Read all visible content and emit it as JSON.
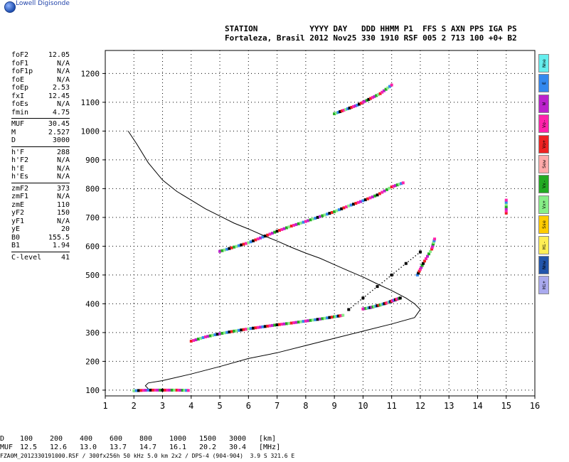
{
  "logo_text": "Lowell Digisonde",
  "header": {
    "line1": "STATION           YYYY DAY   DDD HHMM P1  FFS S AXN PPS IGA PS",
    "line2": "Fortaleza, Brasil 2012 Nov25 330 1910 RSF 005 2 713 100 +0+ B2"
  },
  "params": [
    [
      "foF2",
      "12.05"
    ],
    [
      "foF1",
      "N/A"
    ],
    [
      "foF1p",
      "N/A"
    ],
    [
      "foE",
      "N/A"
    ],
    [
      "foEp",
      "2.53"
    ],
    [
      "fxI",
      "12.45"
    ],
    [
      "foEs",
      "N/A"
    ],
    [
      "fmin",
      "4.75"
    ],
    [
      "---",
      ""
    ],
    [
      "MUF",
      "30.45"
    ],
    [
      "M",
      "2.527"
    ],
    [
      "D",
      "3000"
    ],
    [
      "---",
      ""
    ],
    [
      "h'F",
      "288"
    ],
    [
      "h'F2",
      "N/A"
    ],
    [
      "h'E",
      "N/A"
    ],
    [
      "h'Es",
      "N/A"
    ],
    [
      "---",
      ""
    ],
    [
      "zmF2",
      "373"
    ],
    [
      "zmF1",
      "N/A"
    ],
    [
      "zmE",
      "110"
    ],
    [
      "yF2",
      "150"
    ],
    [
      "yF1",
      "N/A"
    ],
    [
      "yE",
      "20"
    ],
    [
      "B0",
      "155.5"
    ],
    [
      "B1",
      "1.94"
    ],
    [
      "---",
      ""
    ],
    [
      "C-level",
      "41"
    ]
  ],
  "legend": [
    {
      "label": "Nne",
      "color": "#66eeee"
    },
    {
      "label": "E",
      "color": "#3388ee"
    },
    {
      "label": "W",
      "color": "#bb22cc"
    },
    {
      "label": "Vo-",
      "color": "#ff22aa"
    },
    {
      "label": "Vo+",
      "color": "#ee2222"
    },
    {
      "label": "Sew",
      "color": "#ffaaaa"
    },
    {
      "label": "Vx-",
      "color": "#22aa22"
    },
    {
      "label": "Vx+",
      "color": "#88ee88"
    },
    {
      "label": "Sse",
      "color": "#ffcc00"
    },
    {
      "label": "Hi-",
      "color": "#ffee55"
    },
    {
      "label": "Nnw",
      "color": "#2255aa"
    },
    {
      "label": "Hi+",
      "color": "#aaaaee"
    }
  ],
  "muf_table": {
    "d_label": "D",
    "d_values": [
      "100",
      "200",
      "400",
      "600",
      "800",
      "1000",
      "1500",
      "3000",
      "[km]"
    ],
    "muf_label": "MUF",
    "muf_values": [
      "12.5",
      "12.6",
      "13.0",
      "13.7",
      "14.7",
      "16.1",
      "20.2",
      "30.4",
      "[MHz]"
    ]
  },
  "footer": "FZA0M_2012330191000.RSF / 300fx256h 50 kHz 5.0 km 2x2 / DPS-4 (904-904)  3.9 S 321.6 E",
  "chart_data": {
    "type": "scatter",
    "xlim": [
      1,
      16
    ],
    "ylim": [
      80,
      1280
    ],
    "xticks": [
      1,
      2,
      3,
      4,
      5,
      6,
      7,
      8,
      9,
      10,
      11,
      12,
      13,
      14,
      15,
      16
    ],
    "yticks": [
      100,
      200,
      300,
      400,
      500,
      600,
      700,
      800,
      900,
      1000,
      1100,
      1200
    ],
    "grid": true,
    "profile": {
      "x": [
        1.8,
        2.1,
        2.5,
        3.0,
        3.5,
        4.0,
        4.5,
        5.0,
        5.5,
        6.0,
        6.5,
        7.0,
        7.5,
        8.0,
        8.5,
        9.0,
        9.5,
        10.0,
        10.5,
        11.0,
        11.5,
        11.8,
        12.0,
        11.8,
        11.0,
        10.0,
        9.0,
        8.0,
        7.0,
        6.0,
        5.0,
        4.0,
        3.0,
        2.5,
        2.4,
        2.5
      ],
      "y": [
        1000,
        955,
        890,
        830,
        790,
        760,
        730,
        705,
        680,
        660,
        638,
        618,
        596,
        576,
        558,
        536,
        514,
        493,
        469,
        446,
        420,
        400,
        380,
        352,
        330,
        305,
        280,
        255,
        230,
        210,
        182,
        156,
        133,
        125,
        115,
        105
      ]
    },
    "traces": [
      {
        "name": "o-trace",
        "points": [
          [
            4.0,
            270
          ],
          [
            4.5,
            285
          ],
          [
            5.0,
            296
          ],
          [
            5.5,
            305
          ],
          [
            6.0,
            313
          ],
          [
            6.5,
            320
          ],
          [
            7.0,
            327
          ],
          [
            7.5,
            333
          ],
          [
            8.0,
            340
          ],
          [
            8.5,
            347
          ],
          [
            9.0,
            355
          ],
          [
            9.3,
            360
          ]
        ]
      },
      {
        "name": "x-trace",
        "points": [
          [
            10.0,
            382
          ],
          [
            10.3,
            388
          ],
          [
            10.6,
            396
          ],
          [
            10.9,
            405
          ],
          [
            11.1,
            413
          ],
          [
            11.3,
            420
          ]
        ]
      },
      {
        "name": "2F-lower",
        "points": [
          [
            5.0,
            582
          ],
          [
            5.5,
            597
          ],
          [
            6.0,
            612
          ],
          [
            6.5,
            632
          ],
          [
            7.0,
            652
          ],
          [
            7.5,
            670
          ],
          [
            8.0,
            686
          ],
          [
            8.5,
            703
          ],
          [
            9.0,
            720
          ],
          [
            9.5,
            740
          ],
          [
            10.0,
            758
          ],
          [
            10.5,
            778
          ],
          [
            11.0,
            806
          ],
          [
            11.4,
            820
          ]
        ]
      },
      {
        "name": "3F",
        "points": [
          [
            9.0,
            1060
          ],
          [
            9.4,
            1075
          ],
          [
            9.8,
            1090
          ],
          [
            10.2,
            1110
          ],
          [
            10.6,
            1130
          ],
          [
            11.0,
            1160
          ]
        ]
      },
      {
        "name": "Es",
        "points": [
          [
            2.0,
            98
          ],
          [
            2.5,
            100
          ],
          [
            3.0,
            100
          ],
          [
            3.5,
            100
          ],
          [
            3.9,
            99
          ]
        ]
      },
      {
        "name": "x-branch-upper",
        "points": [
          [
            11.9,
            500
          ],
          [
            12.1,
            540
          ],
          [
            12.4,
            590
          ],
          [
            12.5,
            625
          ]
        ]
      },
      {
        "name": "dotted-x",
        "points": [
          [
            9.5,
            380
          ],
          [
            10.0,
            420
          ],
          [
            10.5,
            460
          ],
          [
            11.0,
            500
          ],
          [
            11.5,
            540
          ],
          [
            12.0,
            580
          ]
        ]
      },
      {
        "name": "isolated",
        "points": [
          [
            15.0,
            715
          ],
          [
            15.0,
            760
          ]
        ]
      }
    ]
  }
}
